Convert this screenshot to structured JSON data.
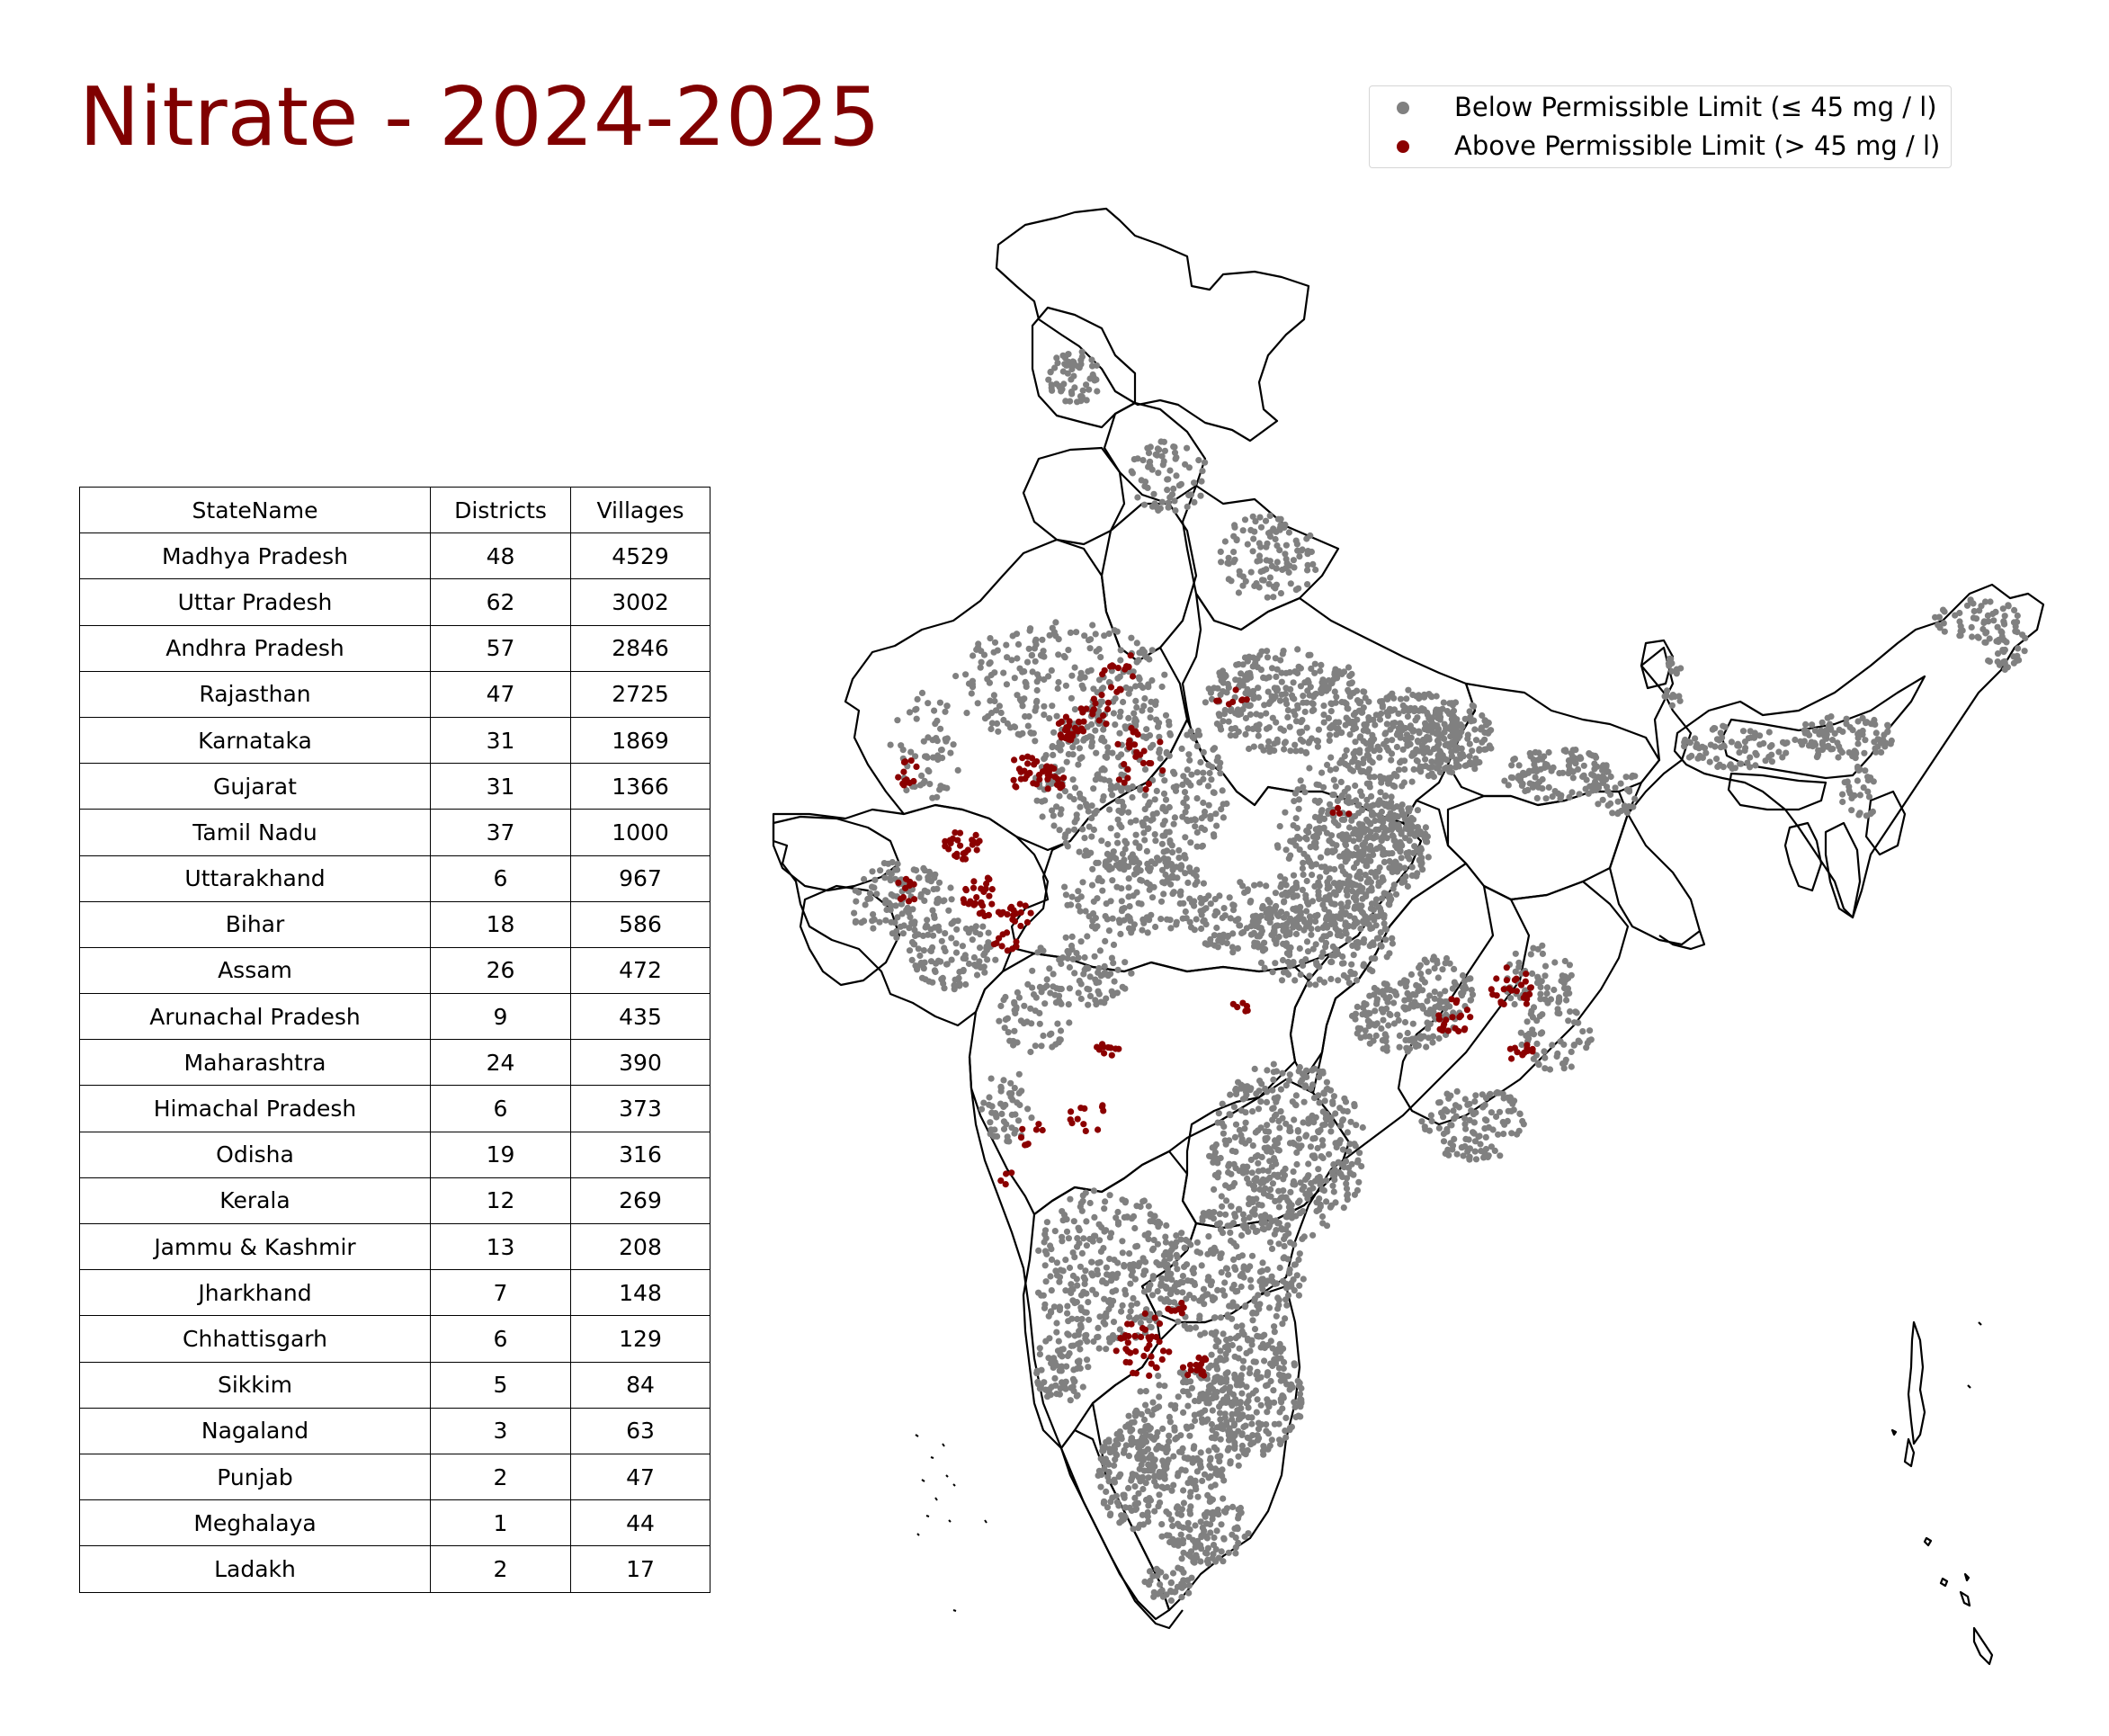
{
  "title": "Nitrate - 2024-2025",
  "legend": {
    "below": {
      "label": "Below Permissible Limit (≤ 45 mg / l)",
      "color": "#808080"
    },
    "above": {
      "label": "Above Permissible Limit (> 45 mg / l)",
      "color": "#8b0000"
    }
  },
  "table": {
    "headers": [
      "StateName",
      "Districts",
      "Villages"
    ],
    "rows": [
      [
        "Madhya Pradesh",
        "48",
        "4529"
      ],
      [
        "Uttar Pradesh",
        "62",
        "3002"
      ],
      [
        "Andhra Pradesh",
        "57",
        "2846"
      ],
      [
        "Rajasthan",
        "47",
        "2725"
      ],
      [
        "Karnataka",
        "31",
        "1869"
      ],
      [
        "Gujarat",
        "31",
        "1366"
      ],
      [
        "Tamil Nadu",
        "37",
        "1000"
      ],
      [
        "Uttarakhand",
        "6",
        "967"
      ],
      [
        "Bihar",
        "18",
        "586"
      ],
      [
        "Assam",
        "26",
        "472"
      ],
      [
        "Arunachal Pradesh",
        "9",
        "435"
      ],
      [
        "Maharashtra",
        "24",
        "390"
      ],
      [
        "Himachal Pradesh",
        "6",
        "373"
      ],
      [
        "Odisha",
        "19",
        "316"
      ],
      [
        "Kerala",
        "12",
        "269"
      ],
      [
        "Jammu & Kashmir",
        "13",
        "208"
      ],
      [
        "Jharkhand",
        "7",
        "148"
      ],
      [
        "Chhattisgarh",
        "6",
        "129"
      ],
      [
        "Sikkim",
        "5",
        "84"
      ],
      [
        "Nagaland",
        "3",
        "63"
      ],
      [
        "Punjab",
        "2",
        "47"
      ],
      [
        "Meghalaya",
        "1",
        "44"
      ],
      [
        "Ladakh",
        "2",
        "17"
      ]
    ]
  },
  "map": {
    "outline_color": "#000000",
    "below_color": "#808080",
    "above_color": "#8b0000"
  }
}
